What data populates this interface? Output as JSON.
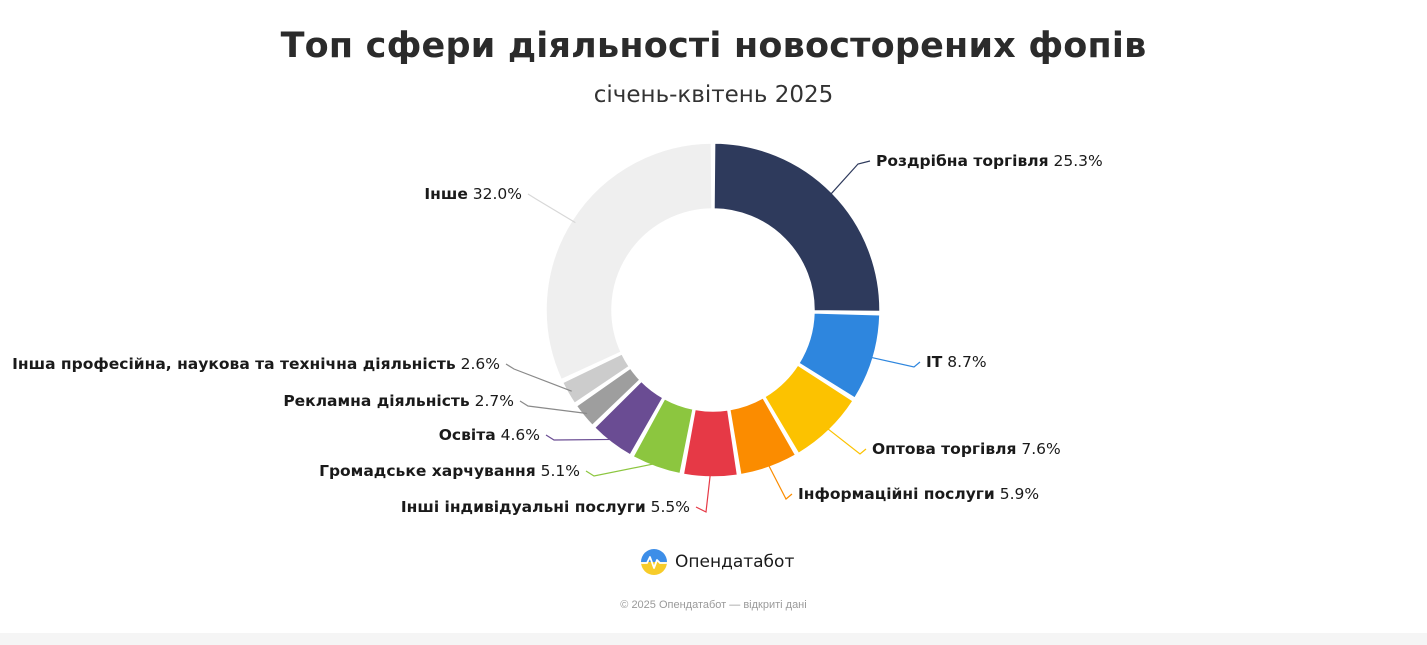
{
  "title": "Топ сфери діяльності новосторених фопів",
  "subtitle": "січень-квітень 2025",
  "brand": {
    "name": "Опендатабот",
    "icon": "opendatabot-logo-icon"
  },
  "copyright": "© 2025 Опендатабот — відкриті дані",
  "chart_data": {
    "type": "pie",
    "donut": true,
    "title": "Топ сфери діяльності новосторених фопів",
    "subtitle": "січень-квітень 2025",
    "unit": "%",
    "slices": [
      {
        "label": "Роздрібна торгівля",
        "value": 25.3,
        "display": "25.3%",
        "color": "#2e3a5c"
      },
      {
        "label": "IT",
        "value": 8.7,
        "display": "8.7%",
        "color": "#2e86de"
      },
      {
        "label": "Оптова торгівля",
        "value": 7.6,
        "display": "7.6%",
        "color": "#fcc200"
      },
      {
        "label": "Інформаційні послуги",
        "value": 5.9,
        "display": "5.9%",
        "color": "#fb8c00"
      },
      {
        "label": "Інші індивідуальні послуги",
        "value": 5.5,
        "display": "5.5%",
        "color": "#e63946"
      },
      {
        "label": "Громадське харчування",
        "value": 5.1,
        "display": "5.1%",
        "color": "#8cc63f"
      },
      {
        "label": "Освіта",
        "value": 4.6,
        "display": "4.6%",
        "color": "#6a4c93"
      },
      {
        "label": "Рекламна діяльність",
        "value": 2.7,
        "display": "2.7%",
        "color": "#9e9e9e"
      },
      {
        "label": "Інша професійна, наукова та технічна діяльність",
        "value": 2.6,
        "display": "2.6%",
        "color": "#cccccc"
      },
      {
        "label": "Інше",
        "value": 32.0,
        "display": "32.0%",
        "color": "#efefef"
      }
    ]
  }
}
